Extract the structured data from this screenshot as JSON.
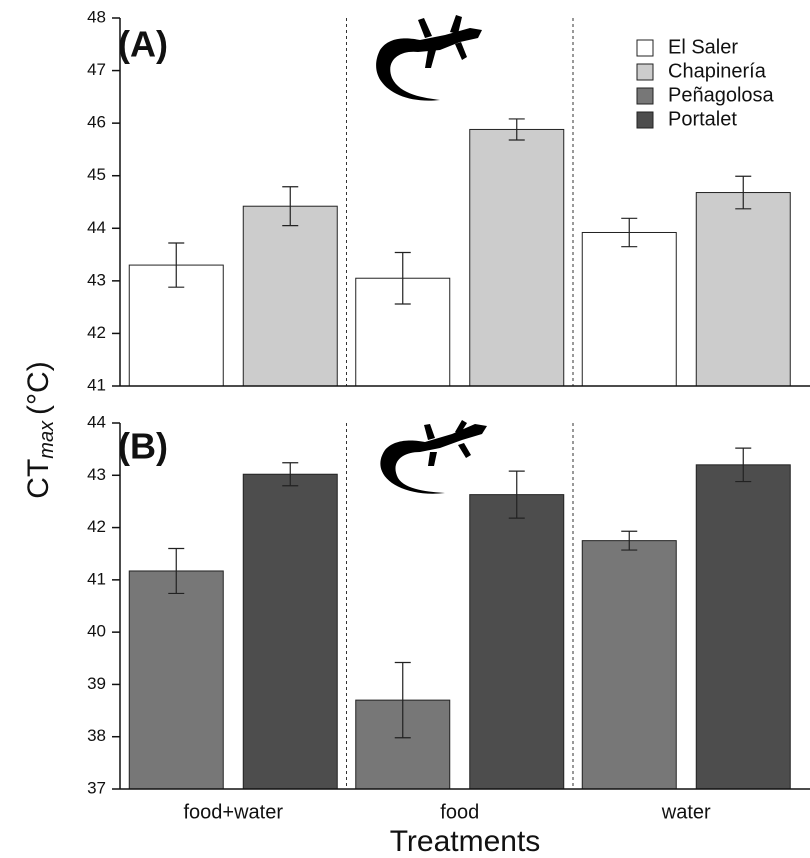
{
  "ylabel": {
    "main": "CT",
    "sub": "max",
    "unit": "(°C)"
  },
  "xlabel": "Treatments",
  "chart_data": [
    {
      "type": "bar",
      "panel_label": "(A)",
      "ylim": [
        41,
        48
      ],
      "yticks": [
        41,
        42,
        43,
        44,
        45,
        46,
        47,
        48
      ],
      "series": [
        {
          "name": "El Saler",
          "color": "#ffffff",
          "values": [
            43.3,
            43.05,
            43.92
          ],
          "errors": [
            0.42,
            0.49,
            0.27
          ]
        },
        {
          "name": "Chapinería",
          "color": "#cccccc",
          "values": [
            44.42,
            45.88,
            44.68
          ],
          "errors": [
            0.37,
            0.2,
            0.31
          ]
        }
      ]
    },
    {
      "type": "bar",
      "panel_label": "(B)",
      "categories": [
        "food+water",
        "food",
        "water"
      ],
      "ylim": [
        37,
        44
      ],
      "yticks": [
        37,
        38,
        39,
        40,
        41,
        42,
        43,
        44
      ],
      "series": [
        {
          "name": "Peñagolosa",
          "color": "#777777",
          "values": [
            41.17,
            38.7,
            41.75
          ],
          "errors": [
            0.43,
            0.72,
            0.18
          ]
        },
        {
          "name": "Portalet",
          "color": "#4d4d4d",
          "values": [
            43.02,
            42.63,
            43.2
          ],
          "errors": [
            0.22,
            0.45,
            0.32
          ]
        }
      ]
    }
  ]
}
